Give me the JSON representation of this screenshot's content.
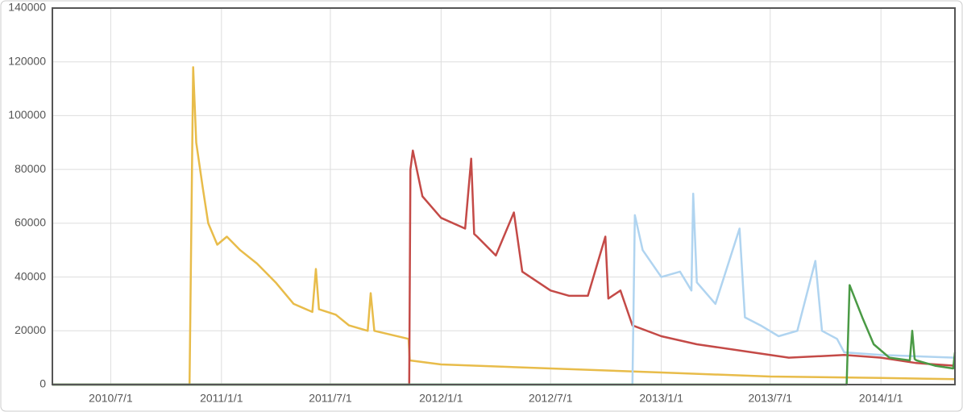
{
  "chart_data": {
    "type": "line",
    "xlim": [
      "2010/3/26",
      "2014/5/4"
    ],
    "xticks": [
      "2010/7/1",
      "2011/1/1",
      "2011/7/1",
      "2012/1/1",
      "2012/7/1",
      "2013/1/1",
      "2013/7/1",
      "2014/1/1"
    ],
    "ylim": [
      0,
      140000
    ],
    "yticks": [
      0,
      20000,
      40000,
      60000,
      80000,
      100000,
      120000,
      140000
    ],
    "grid": true,
    "series": [
      {
        "color": "#e8bc4a",
        "x": [
          "2010/3/26",
          "2010/11/9",
          "2010/11/15",
          "2010/11/20",
          "2010/12/1",
          "2010/12/10",
          "2010/12/25",
          "2011/1/10",
          "2011/2/1",
          "2011/3/1",
          "2011/4/1",
          "2011/5/1",
          "2011/6/1",
          "2011/6/7",
          "2011/6/12",
          "2011/7/10",
          "2011/8/1",
          "2011/9/1",
          "2011/9/6",
          "2011/9/12",
          "2011/11/8",
          "2011/11/10",
          "2012/1/1",
          "2012/7/1",
          "2013/1/1",
          "2013/7/1",
          "2014/1/1",
          "2014/5/4"
        ],
        "values": [
          0,
          0,
          118000,
          90000,
          73000,
          60000,
          52000,
          55000,
          50000,
          45000,
          38000,
          30000,
          27000,
          43000,
          28000,
          26000,
          22000,
          20000,
          34000,
          20000,
          17000,
          9000,
          7500,
          6000,
          4500,
          3000,
          2500,
          2000
        ]
      },
      {
        "color": "#c44a47",
        "x": [
          "2010/3/26",
          "2011/11/9",
          "2011/11/11",
          "2011/11/15",
          "2011/12/1",
          "2012/1/1",
          "2012/2/10",
          "2012/2/20",
          "2012/2/25",
          "2012/3/1",
          "2012/4/1",
          "2012/5/1",
          "2012/5/15",
          "2012/7/1",
          "2012/8/1",
          "2012/9/1",
          "2012/9/30",
          "2012/10/5",
          "2012/10/25",
          "2012/11/14",
          "2013/1/1",
          "2013/3/1",
          "2013/6/1",
          "2013/8/1",
          "2013/11/1",
          "2014/1/1",
          "2014/3/1",
          "2014/5/4"
        ],
        "values": [
          0,
          0,
          80000,
          87000,
          70000,
          62000,
          58000,
          84000,
          56000,
          55000,
          48000,
          64000,
          42000,
          35000,
          33000,
          33000,
          55000,
          32000,
          35000,
          22000,
          18000,
          15000,
          12000,
          10000,
          11000,
          10000,
          8000,
          7000
        ]
      },
      {
        "color": "#b0d4f0",
        "x": [
          "2010/3/26",
          "2012/11/14",
          "2012/11/18",
          "2012/12/1",
          "2013/1/1",
          "2013/2/1",
          "2013/2/20",
          "2013/2/23",
          "2013/3/1",
          "2013/4/1",
          "2013/5/11",
          "2013/5/20",
          "2013/6/15",
          "2013/7/15",
          "2013/8/15",
          "2013/9/14",
          "2013/9/25",
          "2013/10/20",
          "2013/11/1",
          "2014/1/1",
          "2014/5/4"
        ],
        "values": [
          0,
          0,
          63000,
          50000,
          40000,
          42000,
          35000,
          71000,
          38000,
          30000,
          58000,
          25000,
          22000,
          18000,
          20000,
          46000,
          20000,
          17000,
          12000,
          11000,
          10000
        ]
      },
      {
        "color": "#4a9a45",
        "x": [
          "2010/3/26",
          "2013/11/5",
          "2013/11/10",
          "2013/12/1",
          "2013/12/20",
          "2014/1/15",
          "2014/2/18",
          "2014/2/22",
          "2014/2/26",
          "2014/3/1",
          "2014/4/1",
          "2014/5/1",
          "2014/5/4"
        ],
        "values": [
          0,
          0,
          37000,
          25000,
          15000,
          10000,
          9000,
          20000,
          9500,
          9000,
          7000,
          6000,
          12000
        ]
      }
    ]
  }
}
